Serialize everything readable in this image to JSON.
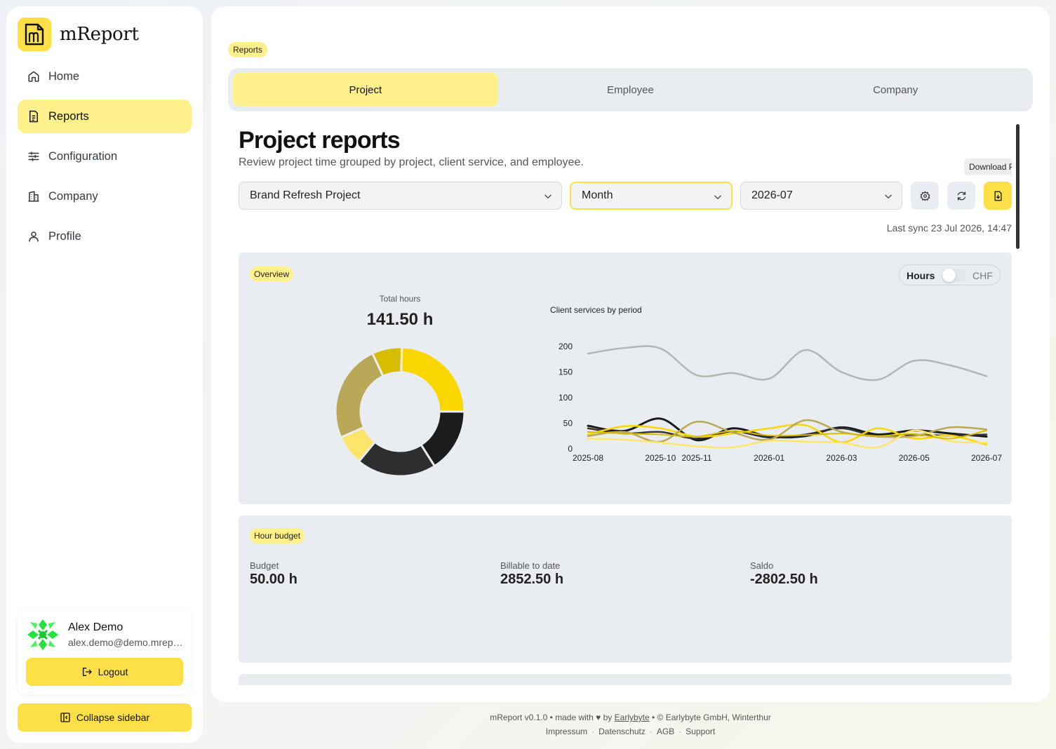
{
  "app": {
    "name": "mReport"
  },
  "sidebar": {
    "items": [
      {
        "label": "Home",
        "icon": "home-icon"
      },
      {
        "label": "Reports",
        "icon": "report-icon",
        "active": true
      },
      {
        "label": "Configuration",
        "icon": "sliders-icon"
      },
      {
        "label": "Company",
        "icon": "building-icon"
      },
      {
        "label": "Profile",
        "icon": "user-icon"
      }
    ],
    "user": {
      "name": "Alex Demo",
      "email": "alex.demo@demo.mreport.ch"
    },
    "logout_label": "Logout",
    "collapse_label": "Collapse sidebar"
  },
  "breadcrumb": "Reports",
  "tabs": [
    {
      "label": "Project",
      "active": true
    },
    {
      "label": "Employee"
    },
    {
      "label": "Company"
    }
  ],
  "page": {
    "title": "Project reports",
    "subtitle": "Review project time grouped by project, client service, and employee."
  },
  "filters": {
    "project": "Brand Refresh Project",
    "period": "Month",
    "date": "2026-07",
    "download_tooltip": "Download PDF",
    "last_sync": "Last sync 23 Jul 2026, 14:47"
  },
  "overview": {
    "badge": "Overview",
    "toggle": {
      "left": "Hours",
      "right": "CHF",
      "value": "Hours"
    },
    "total_label": "Total hours",
    "total_value": "141.50 h"
  },
  "budget": {
    "badge": "Hour budget",
    "items": [
      {
        "label": "Budget",
        "value": "50.00 h"
      },
      {
        "label": "Billable to date",
        "value": "2852.50 h"
      },
      {
        "label": "Saldo",
        "value": "-2802.50 h"
      }
    ]
  },
  "chart_data": [
    {
      "type": "pie",
      "donut": true,
      "title": "",
      "slices": [
        {
          "value": 24.5,
          "color": "#fad700"
        },
        {
          "value": 16,
          "color": "#1c1c1c"
        },
        {
          "value": 20,
          "color": "#2e2e2e"
        },
        {
          "value": 7.5,
          "color": "#fde56a"
        },
        {
          "value": 24.5,
          "color": "#b9a857"
        },
        {
          "value": 7.5,
          "color": "#d8bc00"
        }
      ]
    },
    {
      "type": "line",
      "title": "Client services by period",
      "xlabel": "",
      "ylabel": "",
      "ylim": [
        0,
        200
      ],
      "yticks": [
        0,
        50,
        100,
        150,
        200
      ],
      "x": [
        "2025-08",
        "2025-09",
        "2025-10",
        "2025-11",
        "2025-12",
        "2026-01",
        "2026-02",
        "2026-03",
        "2026-04",
        "2026-05",
        "2026-06",
        "2026-07"
      ],
      "xtick_labels": [
        "2025-08",
        "2025-10",
        "2025-11",
        "2026-01",
        "2026-03",
        "2026-05",
        "2026-07"
      ],
      "series": [
        {
          "color": "#b5b5b5",
          "width": 2.5,
          "values": [
            186,
            197,
            196,
            144,
            148,
            137,
            193,
            150,
            135,
            172,
            163,
            142
          ]
        },
        {
          "color": "#1a1a1a",
          "width": 3,
          "values": [
            45,
            35,
            59,
            17,
            40,
            24,
            25,
            42,
            28,
            36,
            30,
            24
          ]
        },
        {
          "color": "#333333",
          "width": 2.5,
          "values": [
            40,
            30,
            33,
            20,
            34,
            22,
            28,
            40,
            24,
            27,
            26,
            28
          ]
        },
        {
          "color": "#fad700",
          "width": 2.5,
          "values": [
            28,
            44,
            40,
            24,
            30,
            40,
            46,
            13,
            40,
            20,
            26,
            8
          ]
        },
        {
          "color": "#b9a857",
          "width": 2.5,
          "values": [
            25,
            33,
            14,
            53,
            32,
            18,
            56,
            33,
            24,
            25,
            42,
            38
          ]
        },
        {
          "color": "#fde56a",
          "width": 2.5,
          "values": [
            20,
            18,
            12,
            5,
            3,
            16,
            14,
            12,
            3,
            36,
            15,
            12
          ]
        },
        {
          "color": "#d8bc00",
          "width": 2,
          "values": [
            33,
            30,
            28,
            24,
            35,
            26,
            27,
            30,
            25,
            29,
            20,
            36
          ]
        }
      ]
    }
  ],
  "footer": {
    "text_before": "mReport v0.1.0 • made with ♥ by",
    "link": "Earlybyte",
    "text_after": "• © Earlybyte GmbH, Winterthur",
    "links": [
      "Impressum",
      "Datenschutz",
      "AGB",
      "Support"
    ]
  },
  "colors": {
    "accent": "#fde047",
    "accent_light": "#fef08a",
    "card": "#e9edf1"
  }
}
